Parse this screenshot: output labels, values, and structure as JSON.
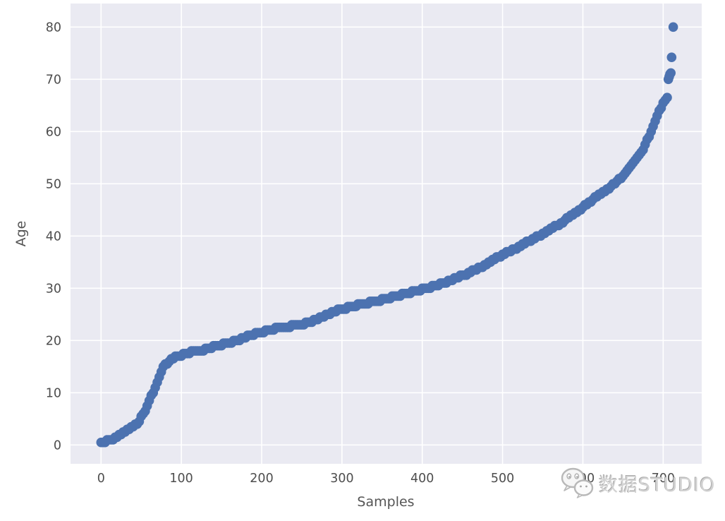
{
  "figure": {
    "background": "#ffffff",
    "plot_bg": "#eaeaf2",
    "grid_color": "#ffffff",
    "dot_color": "#4c72b0",
    "tick_color": "#4d4d4d",
    "label_color": "#555555"
  },
  "chart_data": {
    "type": "scatter",
    "title": "",
    "xlabel": "Samples",
    "ylabel": "Age",
    "x_ticks": [
      0,
      100,
      200,
      300,
      400,
      500,
      600,
      700
    ],
    "y_ticks": [
      0,
      10,
      20,
      30,
      40,
      50,
      60,
      70,
      80
    ],
    "xlim": [
      -38,
      748
    ],
    "ylim": [
      -3.6,
      84.5
    ],
    "grid": true,
    "legend": false,
    "marker_radius_px": 6.8,
    "sample_step": 2.5,
    "age_quantize": 0.5,
    "description": "Ages sorted in ascending order plotted against sample index (~714 samples); monotone curve defined by keypoints [sample, age], plus high-age outlier points.",
    "curve_keypoints": [
      [
        0,
        0.4
      ],
      [
        8,
        0.8
      ],
      [
        15,
        1.2
      ],
      [
        25,
        2
      ],
      [
        35,
        3
      ],
      [
        45,
        4
      ],
      [
        55,
        6.5
      ],
      [
        63,
        9.5
      ],
      [
        70,
        12
      ],
      [
        78,
        15
      ],
      [
        85,
        16
      ],
      [
        95,
        17
      ],
      [
        110,
        17.7
      ],
      [
        130,
        18.3
      ],
      [
        150,
        19.2
      ],
      [
        170,
        20
      ],
      [
        185,
        21
      ],
      [
        200,
        21.6
      ],
      [
        215,
        22.2
      ],
      [
        235,
        22.7
      ],
      [
        255,
        23.3
      ],
      [
        275,
        24.4
      ],
      [
        295,
        25.8
      ],
      [
        315,
        26.6
      ],
      [
        335,
        27.3
      ],
      [
        355,
        28
      ],
      [
        375,
        28.8
      ],
      [
        395,
        29.6
      ],
      [
        415,
        30.4
      ],
      [
        435,
        31.5
      ],
      [
        455,
        32.7
      ],
      [
        475,
        34.2
      ],
      [
        495,
        36
      ],
      [
        515,
        37.5
      ],
      [
        535,
        39.2
      ],
      [
        555,
        40.8
      ],
      [
        575,
        42.7
      ],
      [
        595,
        44.9
      ],
      [
        610,
        46.6
      ],
      [
        622,
        48.2
      ],
      [
        635,
        49.4
      ],
      [
        645,
        50.8
      ],
      [
        655,
        52.3
      ],
      [
        665,
        54.3
      ],
      [
        673,
        55.9
      ],
      [
        681,
        58.6
      ],
      [
        688,
        61
      ],
      [
        694,
        63.8
      ],
      [
        700,
        65.3
      ],
      [
        706,
        66.6
      ]
    ],
    "outliers": [
      [
        706.5,
        70
      ],
      [
        707.5,
        70.5
      ],
      [
        708.5,
        71
      ],
      [
        709.5,
        71.2
      ],
      [
        710.5,
        74.2
      ],
      [
        712.5,
        80
      ]
    ]
  },
  "watermark": {
    "text": "数据STUDIO",
    "icon": "wechat-icon",
    "color": "#d2d2d2"
  }
}
